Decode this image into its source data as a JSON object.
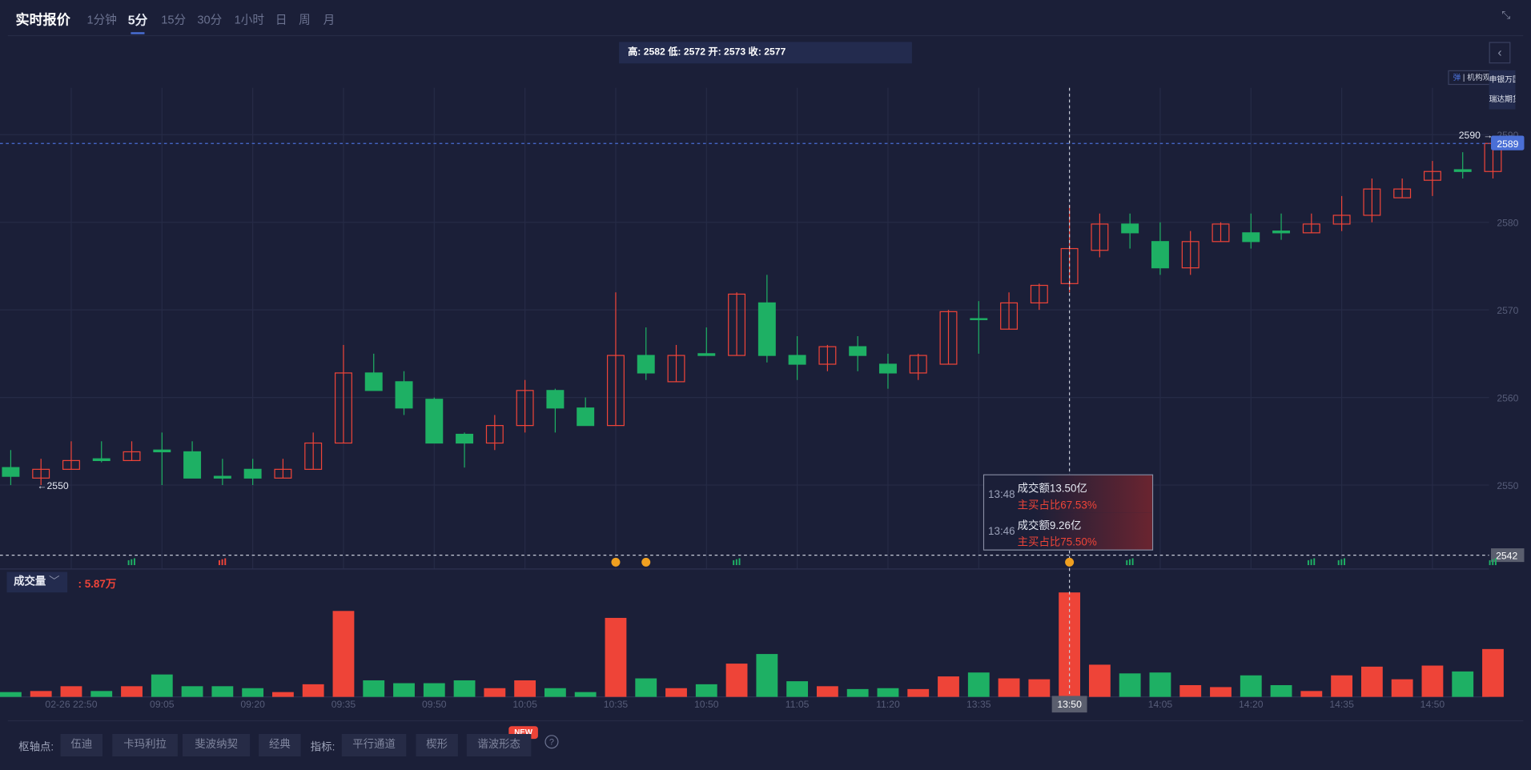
{
  "header": {
    "title": "实时报价",
    "tabs": [
      {
        "label": "1分钟"
      },
      {
        "label": "5分",
        "active": true
      },
      {
        "label": "15分"
      },
      {
        "label": "30分"
      },
      {
        "label": "1小时"
      },
      {
        "label": "日"
      },
      {
        "label": "周"
      },
      {
        "label": "月"
      }
    ],
    "shrink_icon": "compress-icon"
  },
  "info": {
    "text": "高: 2582 低: 2572 开: 2573 收: 2577"
  },
  "legend": {
    "icon_text": "弹",
    "label": "机构观点"
  },
  "broker_tags": [
    "申银万国",
    "瑞达期货"
  ],
  "colors": {
    "up": "#ee4438",
    "down": "#1eb064",
    "background": "#1b1f38",
    "last_price": "#4a6fd6"
  },
  "price_axis": {
    "ticks": [
      "2590",
      "2580",
      "2570",
      "2560",
      "2550"
    ],
    "last_price": "2589",
    "crosshair_price": "2542",
    "max_marker": "2590 →",
    "min_marker": "←2550"
  },
  "volume": {
    "label": "成交量",
    "value": ": 5.87万"
  },
  "tooltip": [
    {
      "time": "13:48",
      "amount": "成交额13.50亿",
      "ratio": "主买占比67.53%"
    },
    {
      "time": "13:46",
      "amount": "成交额9.26亿",
      "ratio": "主买占比75.50%"
    }
  ],
  "x_axis": {
    "labels": [
      {
        "i": 2,
        "t": "02-26 22:50"
      },
      {
        "i": 5,
        "t": "09:05"
      },
      {
        "i": 8,
        "t": "09:20"
      },
      {
        "i": 11,
        "t": "09:35"
      },
      {
        "i": 14,
        "t": "09:50"
      },
      {
        "i": 17,
        "t": "10:05"
      },
      {
        "i": 20,
        "t": "10:35"
      },
      {
        "i": 23,
        "t": "10:50"
      },
      {
        "i": 26,
        "t": "11:05"
      },
      {
        "i": 29,
        "t": "11:20"
      },
      {
        "i": 32,
        "t": "13:35"
      },
      {
        "i": 38,
        "t": "14:05"
      },
      {
        "i": 41,
        "t": "14:20"
      },
      {
        "i": 44,
        "t": "14:35"
      },
      {
        "i": 47,
        "t": "14:50"
      }
    ],
    "crosshair_label": "13:50",
    "crosshair_index": 35
  },
  "markers": [
    {
      "i": 4,
      "type": "green-bars"
    },
    {
      "i": 7,
      "type": "red-bars"
    },
    {
      "i": 20,
      "type": "coin"
    },
    {
      "i": 21,
      "type": "coin"
    },
    {
      "i": 24,
      "type": "green-bars"
    },
    {
      "i": 35,
      "type": "coin"
    },
    {
      "i": 37,
      "type": "green-bars"
    },
    {
      "i": 43,
      "type": "green-bars"
    },
    {
      "i": 44,
      "type": "green-bars"
    },
    {
      "i": 49,
      "type": "green-bars"
    }
  ],
  "toolbar": {
    "pivot_label": "枢轴点:",
    "pivot_buttons": [
      "伍迪",
      "卡玛利拉",
      "斐波纳契",
      "经典"
    ],
    "indicator_label": "指标:",
    "indicator_buttons": [
      "平行通道",
      "楔形",
      "谐波形态"
    ],
    "new_badge": "NEW",
    "help": "?"
  },
  "chart_data": {
    "type": "candlestick",
    "ylim": [
      2540,
      2595
    ],
    "grid": true,
    "ohlc": [
      [
        2552,
        2554,
        2550,
        2551
      ],
      [
        2550.8,
        2553,
        2550,
        2551.8
      ],
      [
        2551.8,
        2555,
        2551.8,
        2552.8
      ],
      [
        2553,
        2555,
        2552.6,
        2552.8
      ],
      [
        2552.8,
        2555,
        2552.8,
        2553.8
      ],
      [
        2554,
        2556,
        2550,
        2553.8
      ],
      [
        2553.8,
        2555,
        2550.8,
        2550.8
      ],
      [
        2551,
        2553,
        2550,
        2550.8
      ],
      [
        2551.8,
        2553,
        2550,
        2550.8
      ],
      [
        2550.8,
        2553,
        2550.8,
        2551.8
      ],
      [
        2551.8,
        2556,
        2551.8,
        2554.8
      ],
      [
        2554.8,
        2566,
        2554.8,
        2562.8
      ],
      [
        2562.8,
        2565,
        2560.8,
        2560.8
      ],
      [
        2561.8,
        2563,
        2558,
        2558.8
      ],
      [
        2559.8,
        2560,
        2554.8,
        2554.8
      ],
      [
        2555.8,
        2556,
        2552,
        2554.8
      ],
      [
        2554.8,
        2558,
        2554,
        2556.8
      ],
      [
        2556.8,
        2562,
        2556,
        2560.8
      ],
      [
        2560.8,
        2561,
        2556,
        2558.8
      ],
      [
        2558.8,
        2560,
        2556.8,
        2556.8
      ],
      [
        2556.8,
        2572,
        2556.8,
        2564.8
      ],
      [
        2564.8,
        2568,
        2562,
        2562.8
      ],
      [
        2561.8,
        2566,
        2561.8,
        2564.8
      ],
      [
        2565,
        2568,
        2564.8,
        2564.8
      ],
      [
        2564.8,
        2572,
        2564.8,
        2571.8
      ],
      [
        2570.8,
        2574,
        2564,
        2564.8
      ],
      [
        2564.8,
        2567,
        2562,
        2563.8
      ],
      [
        2563.8,
        2566,
        2563,
        2565.8
      ],
      [
        2565.8,
        2567,
        2563,
        2564.8
      ],
      [
        2563.8,
        2565,
        2561,
        2562.8
      ],
      [
        2562.8,
        2565,
        2562,
        2564.8
      ],
      [
        2563.8,
        2570,
        2563.8,
        2569.8
      ],
      [
        2569,
        2571,
        2565,
        2568.9
      ],
      [
        2567.8,
        2572,
        2567.8,
        2570.8
      ],
      [
        2570.8,
        2573,
        2570,
        2572.8
      ],
      [
        2573,
        2582,
        2572,
        2577
      ],
      [
        2576.8,
        2581,
        2576,
        2579.8
      ],
      [
        2579.8,
        2581,
        2577,
        2578.8
      ],
      [
        2577.8,
        2580,
        2574,
        2574.8
      ],
      [
        2574.8,
        2579,
        2574,
        2577.8
      ],
      [
        2577.8,
        2580,
        2577.8,
        2579.8
      ],
      [
        2578.8,
        2581,
        2577,
        2577.8
      ],
      [
        2579,
        2581,
        2578,
        2578.8
      ],
      [
        2578.8,
        2581,
        2578.8,
        2579.8
      ],
      [
        2579.8,
        2583,
        2579,
        2580.8
      ],
      [
        2580.8,
        2585,
        2580,
        2583.8
      ],
      [
        2582.8,
        2585,
        2582.8,
        2583.8
      ],
      [
        2584.8,
        2587,
        2583,
        2585.8
      ],
      [
        2586,
        2588,
        2585,
        2585.8
      ],
      [
        2585.8,
        2589,
        2585,
        2589
      ]
    ],
    "volume_unit": "万",
    "volume": [
      0.27,
      0.33,
      0.6,
      0.33,
      0.6,
      1.26,
      0.6,
      0.6,
      0.49,
      0.27,
      0.71,
      4.83,
      0.93,
      0.77,
      0.77,
      0.93,
      0.49,
      0.93,
      0.49,
      0.27,
      4.44,
      1.04,
      0.49,
      0.71,
      1.87,
      2.41,
      0.88,
      0.6,
      0.44,
      0.49,
      0.44,
      1.15,
      1.37,
      1.04,
      0.99,
      5.87,
      1.81,
      1.32,
      1.37,
      0.66,
      0.55,
      1.21,
      0.66,
      0.33,
      1.21,
      1.7,
      0.99,
      1.76,
      1.43,
      2.69
    ]
  }
}
